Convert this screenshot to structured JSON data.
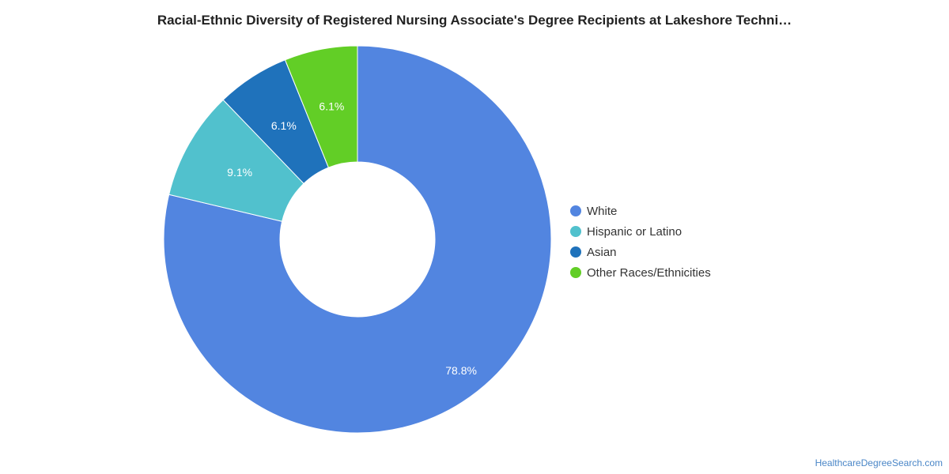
{
  "title": "Racial-Ethnic Diversity of Registered Nursing Associate's Degree Recipients at Lakeshore Techni…",
  "source": "HealthcareDegreeSearch.com",
  "chart_data": {
    "type": "pie",
    "donut": true,
    "legend_position": "right",
    "slices": [
      {
        "label": "White",
        "value": 78.8,
        "value_label": "78.8%",
        "color": "#5285e0"
      },
      {
        "label": "Hispanic or Latino",
        "value": 9.1,
        "value_label": "9.1%",
        "color": "#51c1cd"
      },
      {
        "label": "Asian",
        "value": 6.1,
        "value_label": "6.1%",
        "color": "#1f72bb"
      },
      {
        "label": "Other Races/Ethnicities",
        "value": 6.1,
        "value_label": "6.1%",
        "color": "#62ce26"
      }
    ]
  }
}
